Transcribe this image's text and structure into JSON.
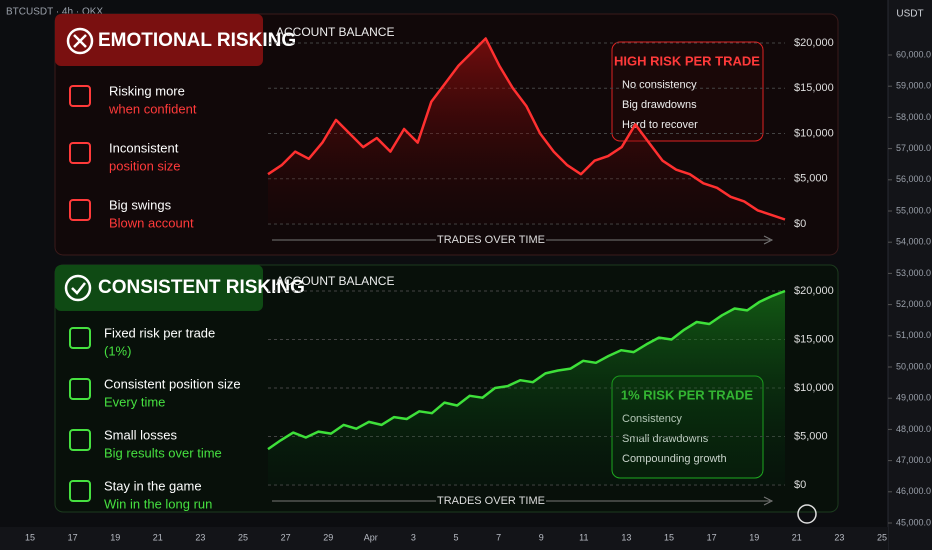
{
  "header": {
    "symbol": "BTCUSDT · 4h · OKX",
    "currency": "USDT"
  },
  "price_axis": {
    "ylim": [
      45000,
      60000
    ],
    "yticks": [
      {
        "value": 45000,
        "label": "45,000.0"
      },
      {
        "value": 46000,
        "label": "46,000.0"
      },
      {
        "value": 47000,
        "label": "47,000.0"
      },
      {
        "value": 48000,
        "label": "48,000.0"
      },
      {
        "value": 49000,
        "label": "49,000.0"
      },
      {
        "value": 50000,
        "label": "50,000.0"
      },
      {
        "value": 51000,
        "label": "51,000.0"
      },
      {
        "value": 52000,
        "label": "52,000.0"
      },
      {
        "value": 53000,
        "label": "53,000.0"
      },
      {
        "value": 54000,
        "label": "54,000.0"
      },
      {
        "value": 55000,
        "label": "55,000.0"
      },
      {
        "value": 56000,
        "label": "56,000.0"
      },
      {
        "value": 57000,
        "label": "57,000.0"
      },
      {
        "value": 58000,
        "label": "58,000.0"
      },
      {
        "value": 59000,
        "label": "59,000.0"
      },
      {
        "value": 60000,
        "label": "60,000.0"
      }
    ]
  },
  "time_axis": [
    "15",
    "17",
    "19",
    "21",
    "23",
    "25",
    "27",
    "29",
    "Apr",
    "3",
    "5",
    "7",
    "9",
    "11",
    "13",
    "15",
    "17",
    "19",
    "21",
    "23",
    "25"
  ],
  "panels": [
    {
      "title": "EMOTIONAL RISKING",
      "items": [
        {
          "title": "Risking more",
          "subtitle": "when confident"
        },
        {
          "title": "Inconsistent",
          "subtitle": "position size"
        },
        {
          "title": "Big swings",
          "subtitle": "Blown account"
        }
      ],
      "callout": {
        "title": "HIGH RISK PER TRADE",
        "bullets": [
          "No consistency",
          "Big drawdowns",
          "Hard to recover"
        ]
      }
    },
    {
      "title": "CONSISTENT RISKING",
      "items": [
        {
          "title": "Fixed risk per trade",
          "subtitle": "(1%)"
        },
        {
          "title": "Consistent position size",
          "subtitle": "Every time"
        },
        {
          "title": "Small losses",
          "subtitle": "Big results over time"
        },
        {
          "title": "Stay in the game",
          "subtitle": "Win in the long run"
        }
      ],
      "callout": {
        "title": "1% RISK PER TRADE",
        "bullets": [
          "Consistency",
          "Small drawdowns",
          "Compounding growth"
        ]
      }
    }
  ],
  "chart_data": [
    {
      "type": "line",
      "title": "ACCOUNT BALANCE",
      "x_label": "TRADES OVER TIME",
      "color": "#ff3030",
      "ylim": [
        0,
        20000
      ],
      "yticks": [
        {
          "value": 0,
          "label": "$0"
        },
        {
          "value": 5000,
          "label": "$5,000"
        },
        {
          "value": 10000,
          "label": "$10,000"
        },
        {
          "value": 15000,
          "label": "$15,000"
        },
        {
          "value": 20000,
          "label": "$20,000"
        }
      ],
      "values": [
        5500,
        6500,
        8000,
        7200,
        9000,
        11500,
        10000,
        8500,
        9500,
        8000,
        10500,
        9000,
        13500,
        15500,
        17500,
        19000,
        20500,
        17500,
        15000,
        13000,
        10000,
        8000,
        6500,
        5500,
        7000,
        7500,
        8500,
        11000,
        9000,
        7000,
        6000,
        5500,
        4500,
        4000,
        3000,
        2500,
        1500,
        1000,
        500
      ]
    },
    {
      "type": "line",
      "title": "ACCOUNT BALANCE",
      "x_label": "TRADES OVER TIME",
      "color": "#3ee03a",
      "ylim": [
        0,
        20000
      ],
      "yticks": [
        {
          "value": 0,
          "label": "$0"
        },
        {
          "value": 5000,
          "label": "$5,000"
        },
        {
          "value": 10000,
          "label": "$10,000"
        },
        {
          "value": 15000,
          "label": "$15,000"
        },
        {
          "value": 20000,
          "label": "$20,000"
        }
      ],
      "values": [
        3700,
        4600,
        5400,
        4900,
        5500,
        5300,
        6200,
        5800,
        6500,
        6200,
        7000,
        6800,
        7600,
        7400,
        8500,
        8200,
        9200,
        9000,
        10000,
        10200,
        10800,
        10600,
        11500,
        11800,
        12000,
        12800,
        12600,
        13300,
        13900,
        13700,
        14500,
        15200,
        15000,
        16000,
        16800,
        16600,
        17500,
        18200,
        18000,
        18900,
        19500,
        20000
      ]
    }
  ]
}
